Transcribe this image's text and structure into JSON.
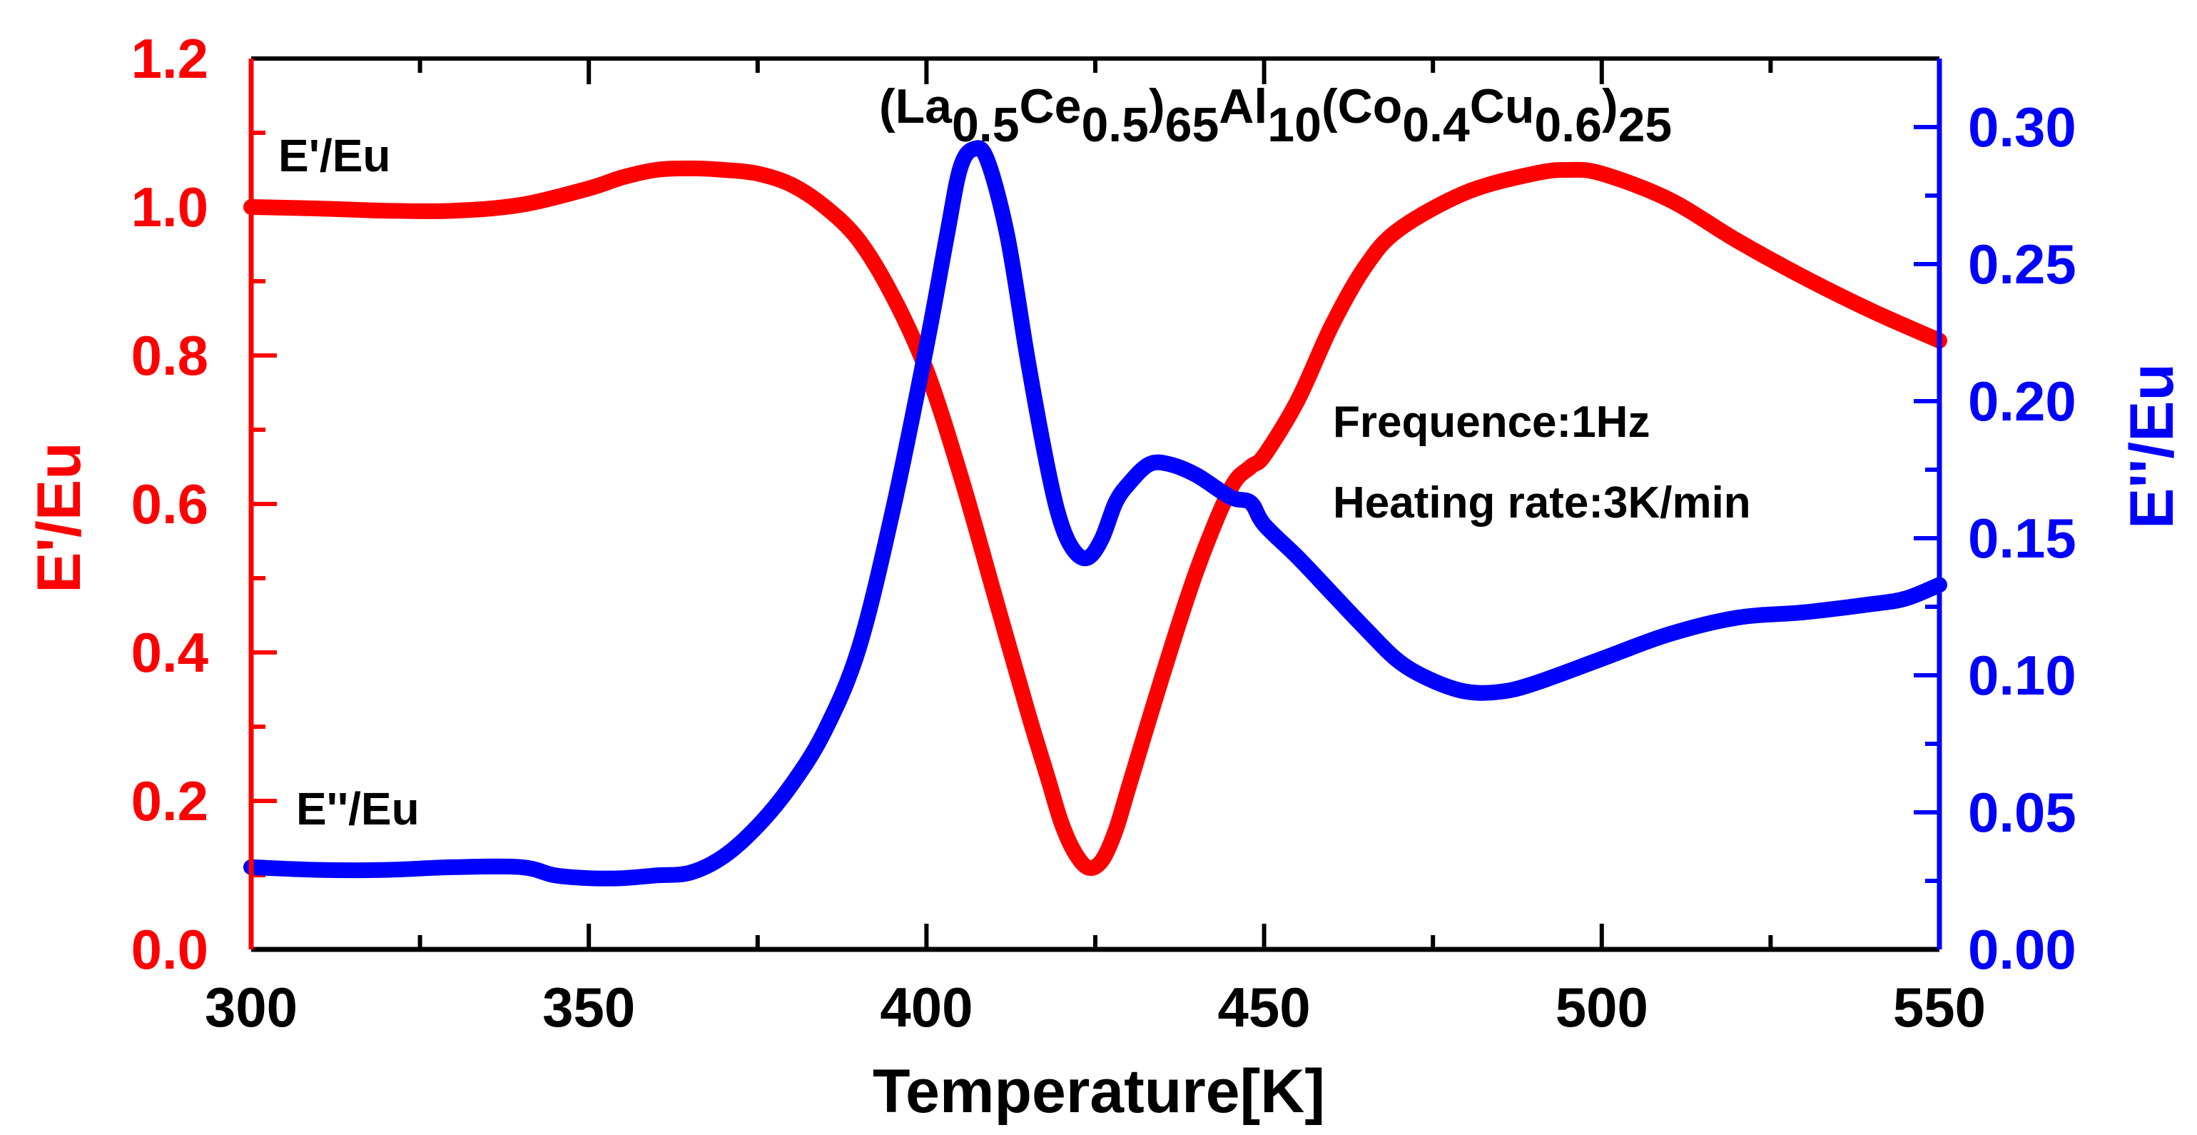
{
  "chart_data": {
    "type": "line",
    "title": {
      "parts": [
        {
          "t": "(La",
          "s": "base"
        },
        {
          "t": "0.5",
          "s": "sub"
        },
        {
          "t": "Ce",
          "s": "base"
        },
        {
          "t": "0.5",
          "s": "sub"
        },
        {
          "t": ")",
          "s": "base"
        },
        {
          "t": "65",
          "s": "sub"
        },
        {
          "t": "Al",
          "s": "base"
        },
        {
          "t": "10",
          "s": "sub"
        },
        {
          "t": "(Co",
          "s": "base"
        },
        {
          "t": "0.4",
          "s": "sub"
        },
        {
          "t": "Cu",
          "s": "base"
        },
        {
          "t": "0.6",
          "s": "sub"
        },
        {
          "t": ")",
          "s": "base"
        },
        {
          "t": "25",
          "s": "sub"
        }
      ]
    },
    "xlabel": "Temperature[K]",
    "ylabel_left": "E'/Eu",
    "ylabel_right": "E''/Eu",
    "xlim": [
      300,
      550
    ],
    "ylim_left": [
      0,
      1.2
    ],
    "ylim_right": [
      0,
      0.325
    ],
    "x_ticks": [
      300,
      350,
      400,
      450,
      500,
      550
    ],
    "x_tick_labels": [
      "300",
      "350",
      "400",
      "450",
      "500",
      "550"
    ],
    "y_left_ticks": [
      0,
      0.2,
      0.4,
      0.6,
      0.8,
      1.0,
      1.2
    ],
    "y_left_tick_labels": [
      "0.0",
      "0.2",
      "0.4",
      "0.6",
      "0.8",
      "1.0",
      "1.2"
    ],
    "y_right_ticks": [
      0,
      0.05,
      0.1,
      0.15,
      0.2,
      0.25,
      0.3
    ],
    "y_right_tick_labels": [
      "0.00",
      "0.05",
      "0.10",
      "0.15",
      "0.20",
      "0.25",
      "0.30"
    ],
    "annotations": [
      "Frequence:1Hz",
      "Heating rate:3K/min"
    ],
    "colors": {
      "left": "#ff0000",
      "right": "#0000ff",
      "frame": "#000000"
    },
    "series": [
      {
        "name": "E'/Eu",
        "axis": "left",
        "color": "#ff0000",
        "label": "E'/Eu",
        "x": [
          300,
          310,
          320,
          330,
          340,
          350,
          355,
          360,
          365,
          370,
          375,
          380,
          385,
          390,
          395,
          400,
          405,
          410,
          415,
          418,
          420,
          422,
          424,
          426,
          428,
          430,
          435,
          440,
          445,
          448,
          450,
          455,
          460,
          465,
          470,
          480,
          490,
          495,
          500,
          510,
          520,
          530,
          540,
          550
        ],
        "y": [
          1.0,
          0.998,
          0.995,
          0.995,
          1.003,
          1.025,
          1.04,
          1.05,
          1.052,
          1.05,
          1.045,
          1.03,
          1.0,
          0.955,
          0.88,
          0.78,
          0.64,
          0.48,
          0.32,
          0.23,
          0.17,
          0.13,
          0.11,
          0.12,
          0.16,
          0.22,
          0.37,
          0.51,
          0.62,
          0.65,
          0.665,
          0.74,
          0.84,
          0.92,
          0.97,
          1.02,
          1.045,
          1.05,
          1.045,
          1.01,
          0.955,
          0.905,
          0.86,
          0.82
        ]
      },
      {
        "name": "E''/Eu",
        "axis": "right",
        "color": "#0000ff",
        "label": "E''/Eu",
        "x": [
          300,
          310,
          320,
          330,
          340,
          345,
          350,
          355,
          360,
          365,
          370,
          375,
          380,
          385,
          390,
          395,
          400,
          403,
          405,
          407,
          409,
          412,
          415,
          418,
          420,
          422,
          424,
          426,
          428,
          430,
          433,
          436,
          440,
          445,
          448,
          450,
          455,
          460,
          465,
          470,
          475,
          480,
          485,
          490,
          500,
          510,
          520,
          530,
          540,
          545,
          550
        ],
        "y": [
          0.03,
          0.029,
          0.029,
          0.03,
          0.03,
          0.027,
          0.026,
          0.026,
          0.027,
          0.028,
          0.034,
          0.045,
          0.06,
          0.08,
          0.11,
          0.16,
          0.22,
          0.26,
          0.285,
          0.292,
          0.288,
          0.26,
          0.215,
          0.175,
          0.155,
          0.145,
          0.143,
          0.15,
          0.163,
          0.17,
          0.177,
          0.177,
          0.173,
          0.165,
          0.163,
          0.155,
          0.143,
          0.13,
          0.117,
          0.105,
          0.098,
          0.094,
          0.094,
          0.097,
          0.106,
          0.115,
          0.121,
          0.123,
          0.126,
          0.128,
          0.133
        ]
      }
    ]
  }
}
